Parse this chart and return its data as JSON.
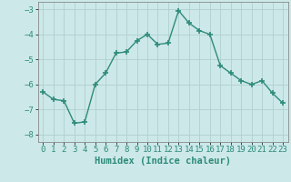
{
  "x": [
    0,
    1,
    2,
    3,
    4,
    5,
    6,
    7,
    8,
    9,
    10,
    11,
    12,
    13,
    14,
    15,
    16,
    17,
    18,
    19,
    20,
    21,
    22,
    23
  ],
  "y": [
    -6.3,
    -6.6,
    -6.65,
    -7.55,
    -7.5,
    -6.0,
    -5.55,
    -4.75,
    -4.7,
    -4.25,
    -4.0,
    -4.4,
    -4.35,
    -3.05,
    -3.55,
    -3.85,
    -4.0,
    -5.25,
    -5.55,
    -5.85,
    -6.0,
    -5.85,
    -6.35,
    -6.75
  ],
  "line_color": "#2e8b7a",
  "marker": "+",
  "marker_size": 4,
  "marker_lw": 1.2,
  "bg_color": "#cce8e8",
  "grid_color": "#b0d0d0",
  "xlabel": "Humidex (Indice chaleur)",
  "xlim": [
    -0.5,
    23.5
  ],
  "ylim": [
    -8.3,
    -2.7
  ],
  "yticks": [
    -8,
    -7,
    -6,
    -5,
    -4,
    -3
  ],
  "xticks": [
    0,
    1,
    2,
    3,
    4,
    5,
    6,
    7,
    8,
    9,
    10,
    11,
    12,
    13,
    14,
    15,
    16,
    17,
    18,
    19,
    20,
    21,
    22,
    23
  ],
  "xlabel_fontsize": 7.5,
  "tick_fontsize": 6.5,
  "line_width": 1.0
}
